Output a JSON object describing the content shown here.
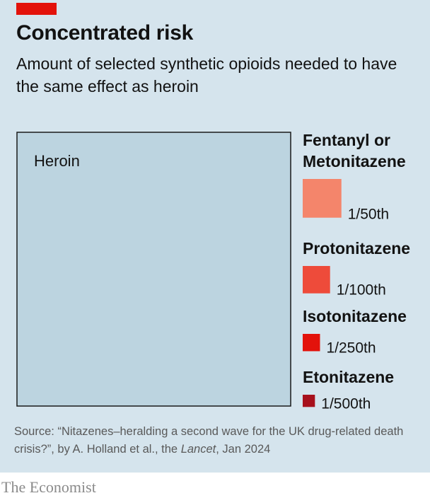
{
  "header": {
    "title": "Concentrated risk",
    "subtitle": "Amount of selected synthetic opioids needed to have the same effect as heroin"
  },
  "chart_data": {
    "type": "area",
    "reference": {
      "name": "Heroin",
      "value": 1,
      "color": "#bcd4e0",
      "stroke": "#1a1a1a"
    },
    "items": [
      {
        "name_lines": [
          "Fentanyl or",
          "Metonitazene"
        ],
        "label": "1/50th",
        "value": 0.02,
        "color": "#f4856b"
      },
      {
        "name_lines": [
          "Protonitazene"
        ],
        "label": "1/100th",
        "value": 0.01,
        "color": "#ee4b3a"
      },
      {
        "name_lines": [
          "Isotonitazene"
        ],
        "label": "1/250th",
        "value": 0.004,
        "color": "#e3120b"
      },
      {
        "name_lines": [
          "Etonitazene"
        ],
        "label": "1/500th",
        "value": 0.002,
        "color": "#a7101c"
      }
    ]
  },
  "footer": {
    "source_prefix": "Source: “Nitazenes–heralding a second wave for the UK drug-related death crisis?”, by A. Holland et al., the ",
    "source_journal": "Lancet",
    "source_suffix": ", Jan 2024",
    "logo": "The Economist"
  }
}
